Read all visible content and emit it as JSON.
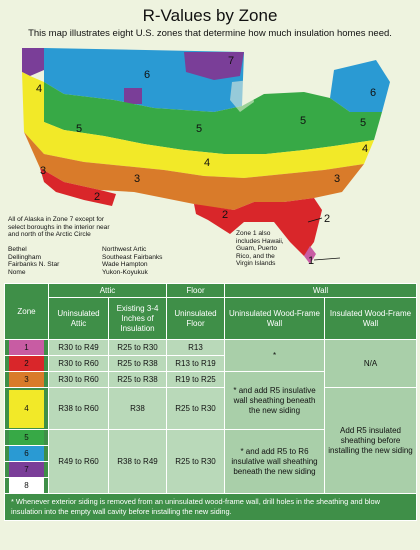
{
  "title": "R-Values by Zone",
  "subtitle": "This map illustrates eight U.S. zones that determine how much insulation homes need.",
  "zone_colors": {
    "1": "#c85ca3",
    "2": "#d9262a",
    "3": "#d97b2a",
    "4": "#f2e928",
    "5": "#37a946",
    "6": "#2a9ad3",
    "7": "#7a3e98",
    "8": "#ffffff"
  },
  "map": {
    "zone_labels": [
      "1",
      "2",
      "2",
      "2",
      "3",
      "3",
      "3",
      "4",
      "4",
      "4",
      "5",
      "5",
      "5",
      "5",
      "6",
      "6",
      "7"
    ],
    "alaska_note": [
      "All of Alaska in Zone 7 except for",
      "select boroughs in the interior near",
      "and north of the Arctic Circle"
    ],
    "alaska_boroughs_left": [
      "Bethel",
      "Dellingham",
      "Fairbanks  N. Star",
      "Nome"
    ],
    "alaska_boroughs_right": [
      "Northwest Artic",
      "Southeast Fairbanks",
      "Wade Hampton",
      "Yukon-Koyukuk"
    ],
    "zone1_note": [
      "Zone 1 also",
      "includes Hawaii,",
      "Guam, Puerto",
      "Rico, and the",
      "Virgin Islands"
    ]
  },
  "table": {
    "headers": {
      "zone": "Zone",
      "attic": "Attic",
      "floor": "Floor",
      "wall": "Wall",
      "uninsulated_attic": "Uninsulated Attic",
      "existing_attic": "Existing 3-4 Inches of Insulation",
      "uninsulated_floor": "Uninsulated Floor",
      "uninsulated_wall": "Uninsulated Wood-Frame Wall",
      "insulated_wall": "Insulated Wood-Frame Wall"
    },
    "rows": [
      {
        "zone": "1",
        "attic": "R30 to R49",
        "existing": "R25 to R30",
        "floor": "R13"
      },
      {
        "zone": "2",
        "attic": "R30 to R60",
        "existing": "R25 to R38",
        "floor": "R13 to R19"
      },
      {
        "zone": "3",
        "attic": "R30 to R60",
        "existing": "R25 to R38",
        "floor": "R19 to R25"
      },
      {
        "zone": "4",
        "attic": "R38 to R60",
        "existing": "R38",
        "floor": "R25 to R30"
      },
      {
        "zone": "5",
        "attic": "R49 to R60",
        "existing": "R38 to R49",
        "floor": "R25 to R30"
      },
      {
        "zone": "6"
      },
      {
        "zone": "7"
      },
      {
        "zone": "8"
      }
    ],
    "wall_notes": {
      "zone_1_2": "*",
      "zone_3_4": "*  and add R5 insulative wall sheathing beneath the new siding",
      "zone_5_8": "*  and add R5 to R6 insulative wall sheathing beneath the new siding",
      "insulated_1_3": "N/A",
      "insulated_4_8": "Add R5 insulated sheathing before installing the new siding"
    },
    "footnote": "* Whenever exterior siding is removed from an uninsulated wood-frame wall, drill holes in the sheathing and blow insulation into the empty wall cavity before installing the new siding."
  }
}
